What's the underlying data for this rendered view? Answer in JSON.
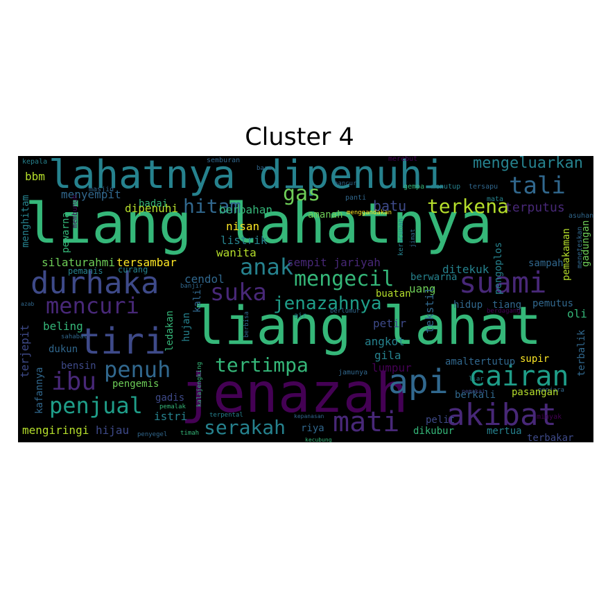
{
  "title": "Cluster 4",
  "palette": {
    "background": "#000000",
    "dark_purple": "#440154",
    "purple": "#482878",
    "indigo": "#3e4a89",
    "blue": "#31688e",
    "teal": "#26828e",
    "green_teal": "#1f9e89",
    "green": "#35b779",
    "light_green": "#6ece58",
    "yellow_green": "#b5de2b",
    "yellow": "#fde725"
  },
  "words": {
    "liang_lahatnya": "liang lahatnya",
    "liang_lahat": "liang lahat",
    "lahatnya_dipenuhi": "lahatnya dipenuhi",
    "jenazah": "jenazah",
    "durhaka": "durhaka",
    "tiri": "tiri",
    "suami": "suami",
    "api": "api",
    "akibat": "akibat",
    "cairan": "cairan",
    "mati": "mati",
    "mengecil": "mengecil",
    "anak": "anak",
    "tali": "tali",
    "hitam": "hitam",
    "suka": "suka",
    "mencuri": "mencuri",
    "ibu": "ibu",
    "penuh": "penuh",
    "penjual": "penjual",
    "serakah": "serakah",
    "jenazahnya": "jenazahnya",
    "tertimpa": "tertimpa",
    "terkena": "terkena",
    "gas": "gas",
    "mengeluarkan": "mengeluarkan",
    "batu": "batu",
    "terputus": "terputus",
    "asuhan": "asuhan",
    "sempit_jariyah": "sempit jariyah",
    "kepala": "kepala",
    "semburan": "semburan",
    "merebut": "merebut",
    "bara": "bara",
    "bbm": "bbm",
    "masjid": "masjid",
    "menyempit": "menyempit",
    "badai": "badai",
    "dipenuhi": "dipenuhi",
    "berbahan": "berbahan",
    "amanah": "amanah",
    "nisan": "nisan",
    "listrik": "listrik",
    "wanita": "wanita",
    "menghitam": "menghitam",
    "pewarna": "pewarna",
    "silaturahmi": "silaturahmi",
    "tersambar": "tersambar",
    "curang": "curang",
    "pemanis": "pemanis",
    "cendol": "cendol",
    "banjir": "banjir",
    "kali": "kali",
    "azab": "azab",
    "beling": "beling",
    "sahabat": "sahabat",
    "terjepit": "terjepit",
    "dukun": "dukun",
    "bensin": "bensin",
    "kafannya": "kafannya",
    "pengemis": "pengemis",
    "gadis": "gadis",
    "pemalak": "pemalak",
    "istri": "istri",
    "mengiringi": "mengiringi",
    "hijau": "hijau",
    "penyegel": "penyegel",
    "timah": "timah",
    "terpental": "terpental",
    "kalajengking": "kalajengking",
    "ledakan": "ledakan",
    "hujan": "hujan",
    "berbisa": "berbisa",
    "air": "air",
    "berlumur": "berlumur",
    "jamunya": "jamunya",
    "angkot": "angkot",
    "gila": "gila",
    "lumpur": "lumpur",
    "petir": "petir",
    "tekstil": "tekstil",
    "uang": "uang",
    "buatan": "buatan",
    "berwarna": "berwarna",
    "ditekuk": "ditekuk",
    "hidup": "hidup",
    "tiang": "tiang",
    "pemutus": "pemutus",
    "oli": "oli",
    "berdagang": "berdagang",
    "amaltertutup": "amaltertutup",
    "supir": "supir",
    "terbalik": "terbalik",
    "pengoplos": "pengoplos",
    "pemakaman": "pemakaman",
    "meneteskan": "meneteskan",
    "gadungan": "gadungan",
    "sampah": "sampah",
    "liar": "liar",
    "pemakai": "pemakai",
    "penjara": "penjara",
    "minyak": "minyak",
    "berkali": "berkali",
    "pasangan": "pasangan",
    "pelit": "pelit",
    "riya": "riya",
    "kepanasan": "kepanasan",
    "dikubur": "dikubur",
    "mertua": "mertua",
    "terbakar": "terbakar",
    "panti": "panti",
    "menggandakan": "menggandakan",
    "hancur": "hancur",
    "gempa": "gempa",
    "menutup": "menutup",
    "tersapu": "tersapu",
    "mata": "mata",
    "keracunan": "keracunan",
    "jimat": "jimat",
    "kecubung": "kecubung",
    "membunuh": "membunuh"
  }
}
